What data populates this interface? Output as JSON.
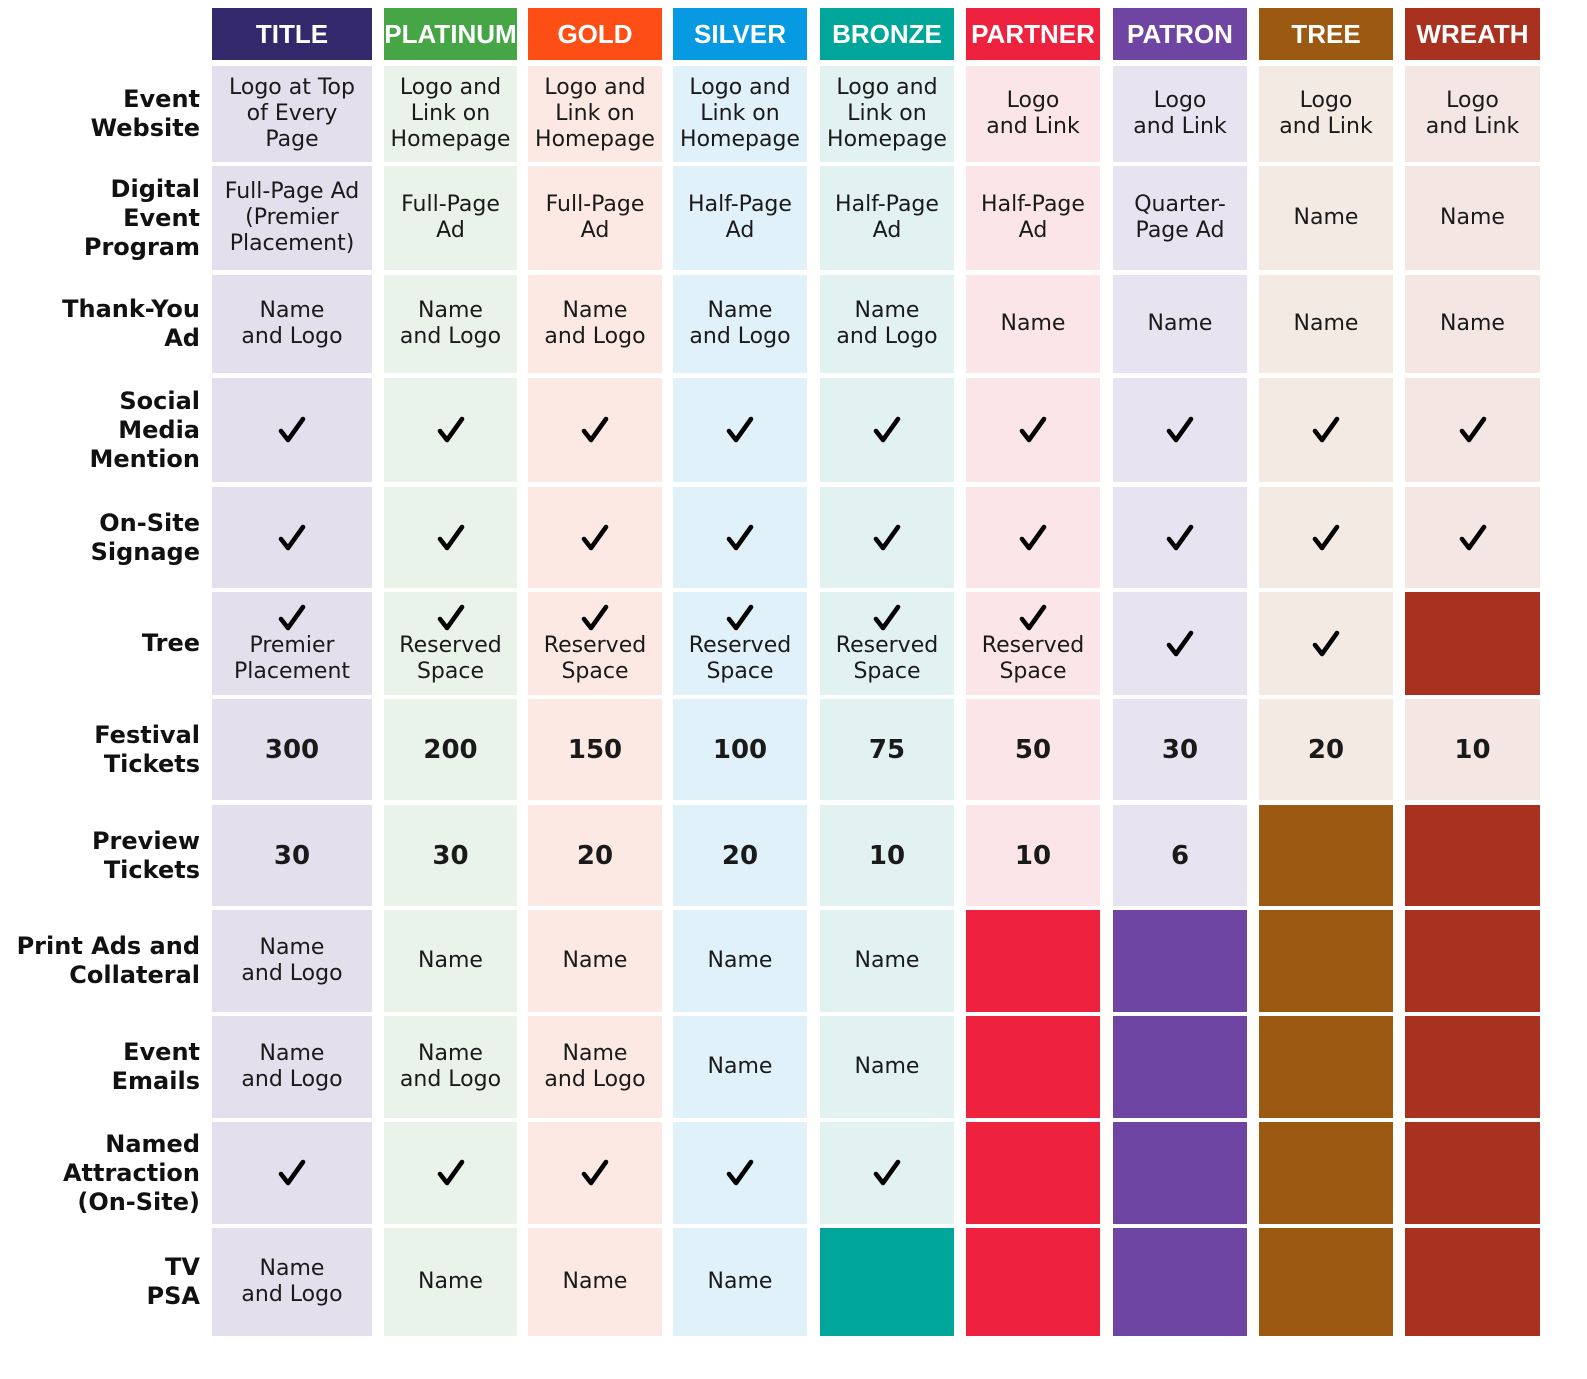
{
  "tiers": [
    {
      "name": "TITLE",
      "color": "#33286b",
      "light": "#e3dfec"
    },
    {
      "name": "PLATINUM",
      "color": "#46a646",
      "light": "#e9f3ea"
    },
    {
      "name": "GOLD",
      "color": "#fd4f15",
      "light": "#fde9e3"
    },
    {
      "name": "SILVER",
      "color": "#079ae3",
      "light": "#e1f1fa"
    },
    {
      "name": "BRONZE",
      "color": "#00a699",
      "light": "#e2f2f0"
    },
    {
      "name": "PARTNER",
      "color": "#ee223e",
      "light": "#fce5e8"
    },
    {
      "name": "PATRON",
      "color": "#6f45a3",
      "light": "#e8e3f0"
    },
    {
      "name": "TREE",
      "color": "#9c5912",
      "light": "#f3ebe3"
    },
    {
      "name": "WREATH",
      "color": "#a8321f",
      "light": "#f4e6e3"
    }
  ],
  "rows": [
    {
      "label": [
        "Event",
        "Website"
      ],
      "cells": [
        {
          "text": [
            "Logo at Top",
            "of Every",
            "Page"
          ]
        },
        {
          "text": [
            "Logo and",
            "Link on",
            "Homepage"
          ]
        },
        {
          "text": [
            "Logo and",
            "Link on",
            "Homepage"
          ]
        },
        {
          "text": [
            "Logo and",
            "Link on",
            "Homepage"
          ]
        },
        {
          "text": [
            "Logo and",
            "Link on",
            "Homepage"
          ]
        },
        {
          "text": [
            "Logo",
            "and Link"
          ]
        },
        {
          "text": [
            "Logo",
            "and Link"
          ]
        },
        {
          "text": [
            "Logo",
            "and Link"
          ]
        },
        {
          "text": [
            "Logo",
            "and Link"
          ]
        }
      ]
    },
    {
      "label": [
        "Digital",
        "Event",
        "Program"
      ],
      "cells": [
        {
          "text": [
            "Full-Page Ad",
            "(Premier",
            "Placement)"
          ]
        },
        {
          "text": [
            "Full-Page",
            "Ad"
          ]
        },
        {
          "text": [
            "Full-Page",
            "Ad"
          ]
        },
        {
          "text": [
            "Half-Page",
            "Ad"
          ]
        },
        {
          "text": [
            "Half-Page",
            "Ad"
          ]
        },
        {
          "text": [
            "Half-Page",
            "Ad"
          ]
        },
        {
          "text": [
            "Quarter-",
            "Page Ad"
          ]
        },
        {
          "text": [
            "Name"
          ]
        },
        {
          "text": [
            "Name"
          ]
        }
      ]
    },
    {
      "label": [
        "Thank-You",
        "Ad"
      ],
      "cells": [
        {
          "text": [
            "Name",
            "and Logo"
          ]
        },
        {
          "text": [
            "Name",
            "and Logo"
          ]
        },
        {
          "text": [
            "Name",
            "and Logo"
          ]
        },
        {
          "text": [
            "Name",
            "and Logo"
          ]
        },
        {
          "text": [
            "Name",
            "and Logo"
          ]
        },
        {
          "text": [
            "Name"
          ]
        },
        {
          "text": [
            "Name"
          ]
        },
        {
          "text": [
            "Name"
          ]
        },
        {
          "text": [
            "Name"
          ]
        }
      ]
    },
    {
      "label": [
        "Social",
        "Media",
        "Mention"
      ],
      "cells": [
        {
          "check": true
        },
        {
          "check": true
        },
        {
          "check": true
        },
        {
          "check": true
        },
        {
          "check": true
        },
        {
          "check": true
        },
        {
          "check": true
        },
        {
          "check": true
        },
        {
          "check": true
        }
      ]
    },
    {
      "label": [
        "On-Site",
        "Signage"
      ],
      "cells": [
        {
          "check": true
        },
        {
          "check": true
        },
        {
          "check": true
        },
        {
          "check": true
        },
        {
          "check": true
        },
        {
          "check": true
        },
        {
          "check": true
        },
        {
          "check": true
        },
        {
          "check": true
        }
      ]
    },
    {
      "label": [
        "Tree"
      ],
      "cells": [
        {
          "check": true,
          "text": [
            "Premier",
            "Placement"
          ]
        },
        {
          "check": true,
          "text": [
            "Reserved",
            "Space"
          ]
        },
        {
          "check": true,
          "text": [
            "Reserved",
            "Space"
          ]
        },
        {
          "check": true,
          "text": [
            "Reserved",
            "Space"
          ]
        },
        {
          "check": true,
          "text": [
            "Reserved",
            "Space"
          ]
        },
        {
          "check": true,
          "text": [
            "Reserved",
            "Space"
          ]
        },
        {
          "check": true
        },
        {
          "check": true
        },
        {
          "na": true
        }
      ]
    },
    {
      "label": [
        "Festival",
        "Tickets"
      ],
      "cells": [
        {
          "num": "300"
        },
        {
          "num": "200"
        },
        {
          "num": "150"
        },
        {
          "num": "100"
        },
        {
          "num": "75"
        },
        {
          "num": "50"
        },
        {
          "num": "30"
        },
        {
          "num": "20"
        },
        {
          "num": "10"
        }
      ]
    },
    {
      "label": [
        "Preview",
        "Tickets"
      ],
      "cells": [
        {
          "num": "30"
        },
        {
          "num": "30"
        },
        {
          "num": "20"
        },
        {
          "num": "20"
        },
        {
          "num": "10"
        },
        {
          "num": "10"
        },
        {
          "num": "6"
        },
        {
          "na": true
        },
        {
          "na": true
        }
      ]
    },
    {
      "label": [
        "Print Ads and",
        "Collateral"
      ],
      "cells": [
        {
          "text": [
            "Name",
            "and Logo"
          ]
        },
        {
          "text": [
            "Name"
          ]
        },
        {
          "text": [
            "Name"
          ]
        },
        {
          "text": [
            "Name"
          ]
        },
        {
          "text": [
            "Name"
          ]
        },
        {
          "na": true
        },
        {
          "na": true
        },
        {
          "na": true
        },
        {
          "na": true
        }
      ]
    },
    {
      "label": [
        "Event",
        "Emails"
      ],
      "cells": [
        {
          "text": [
            "Name",
            "and Logo"
          ]
        },
        {
          "text": [
            "Name",
            "and Logo"
          ]
        },
        {
          "text": [
            "Name",
            "and Logo"
          ]
        },
        {
          "text": [
            "Name"
          ]
        },
        {
          "text": [
            "Name"
          ]
        },
        {
          "na": true
        },
        {
          "na": true
        },
        {
          "na": true
        },
        {
          "na": true
        }
      ]
    },
    {
      "label": [
        "Named",
        "Attraction",
        "(On-Site)"
      ],
      "cells": [
        {
          "check": true
        },
        {
          "check": true
        },
        {
          "check": true
        },
        {
          "check": true
        },
        {
          "check": true
        },
        {
          "na": true
        },
        {
          "na": true
        },
        {
          "na": true
        },
        {
          "na": true
        }
      ]
    },
    {
      "label": [
        "TV",
        "PSA"
      ],
      "cells": [
        {
          "text": [
            "Name",
            "and Logo"
          ]
        },
        {
          "text": [
            "Name"
          ]
        },
        {
          "text": [
            "Name"
          ]
        },
        {
          "text": [
            "Name"
          ]
        },
        {
          "na": true
        },
        {
          "na": true
        },
        {
          "na": true
        },
        {
          "na": true
        },
        {
          "na": true
        }
      ]
    }
  ]
}
